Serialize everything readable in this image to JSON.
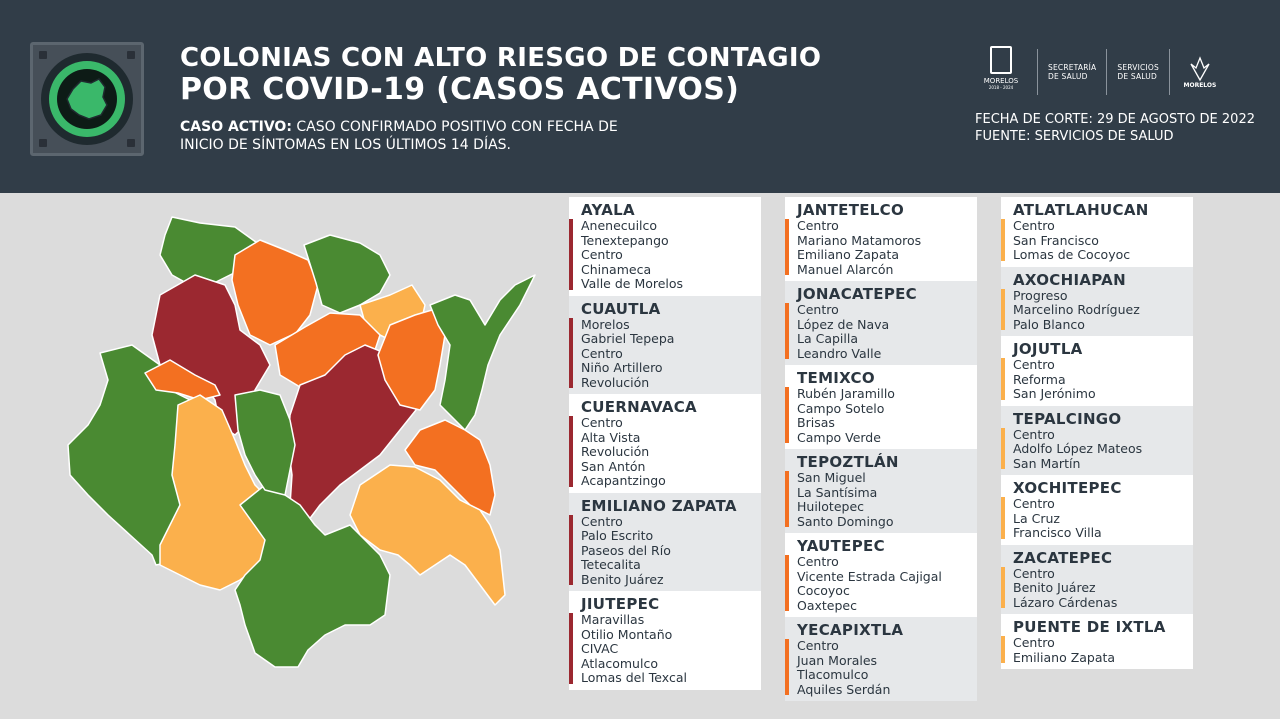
{
  "header": {
    "title_line1": "COLONIAS CON ALTO RIESGO DE CONTAGIO",
    "title_line2": "POR COVID-19 (CASOS ACTIVOS)",
    "definition_label": "CASO ACTIVO:",
    "definition_text_line1": "CASO CONFIRMADO POSITIVO CON FECHA DE",
    "definition_text_line2": "INICIO DE SÍNTOMAS EN LOS ÚLTIMOS 14 DÍAS.",
    "fecha_corte": "FECHA DE CORTE: 29 DE AGOSTO DE 2022",
    "fuente": "FUENTE: SERVICIOS DE SALUD",
    "logos": {
      "morelos": "MORELOS",
      "morelos_years": "2018 - 2024",
      "secretaria_line1": "SECRETARÍA",
      "secretaria_line2": "DE SALUD",
      "servicios_line1": "SERVICIOS",
      "servicios_line2": "DE SALUD",
      "morelos2": "MORELOS"
    }
  },
  "colors": {
    "header_bg": "#313d48",
    "red": "#9b2830",
    "orange": "#f37021",
    "light_orange": "#fbb04c",
    "green": "#4a8a32",
    "map_border": "#ffffff"
  },
  "columns": [
    [
      {
        "name": "AYALA",
        "color": "#9b2830",
        "items": [
          "Anenecuilco",
          "Tenextepango",
          "Centro",
          "Chinameca",
          "Valle de Morelos"
        ]
      },
      {
        "name": "CUAUTLA",
        "color": "#9b2830",
        "items": [
          "Morelos",
          "Gabriel Tepepa",
          "Centro",
          "Niño Artillero",
          "Revolución"
        ]
      },
      {
        "name": "CUERNAVACA",
        "color": "#9b2830",
        "items": [
          "Centro",
          "Alta Vista",
          "Revolución",
          "San Antón",
          "Acapantzingo"
        ]
      },
      {
        "name": "EMILIANO ZAPATA",
        "color": "#9b2830",
        "items": [
          "Centro",
          "Palo Escrito",
          "Paseos del Río",
          "Tetecalita",
          "Benito Juárez"
        ]
      },
      {
        "name": "JIUTEPEC",
        "color": "#9b2830",
        "items": [
          "Maravillas",
          "Otilio Montaño",
          "CIVAC",
          "Atlacomulco",
          "Lomas del Texcal"
        ]
      }
    ],
    [
      {
        "name": "JANTETELCO",
        "color": "#f37021",
        "items": [
          "Centro",
          "Mariano Matamoros",
          "Emiliano Zapata",
          "Manuel Alarcón"
        ]
      },
      {
        "name": "JONACATEPEC",
        "color": "#f37021",
        "items": [
          "Centro",
          "López de Nava",
          "La Capilla",
          "Leandro Valle"
        ]
      },
      {
        "name": "TEMIXCO",
        "color": "#f37021",
        "items": [
          "Rubén Jaramillo",
          "Campo Sotelo",
          "Brisas",
          "Campo Verde"
        ]
      },
      {
        "name": "TEPOZTLÁN",
        "color": "#f37021",
        "items": [
          "San Miguel",
          "La Santísima",
          "Huilotepec",
          "Santo Domingo"
        ]
      },
      {
        "name": "YAUTEPEC",
        "color": "#f37021",
        "items": [
          "Centro",
          "Vicente Estrada Cajigal",
          "Cocoyoc",
          "Oaxtepec"
        ]
      },
      {
        "name": "YECAPIXTLA",
        "color": "#f37021",
        "items": [
          "Centro",
          "Juan Morales",
          "Tlacomulco",
          "Aquiles Serdán"
        ]
      }
    ],
    [
      {
        "name": "ATLATLAHUCAN",
        "color": "#fbb04c",
        "items": [
          "Centro",
          "San Francisco",
          "Lomas de Cocoyoc"
        ]
      },
      {
        "name": "AXOCHIAPAN",
        "color": "#fbb04c",
        "items": [
          "Progreso",
          "Marcelino Rodríguez",
          "Palo Blanco"
        ]
      },
      {
        "name": "JOJUTLA",
        "color": "#fbb04c",
        "items": [
          "Centro",
          "Reforma",
          "San Jerónimo"
        ]
      },
      {
        "name": "TEPALCINGO",
        "color": "#fbb04c",
        "items": [
          "Centro",
          "Adolfo López Mateos",
          "San Martín"
        ]
      },
      {
        "name": "XOCHITEPEC",
        "color": "#fbb04c",
        "items": [
          "Centro",
          "La Cruz",
          "Francisco Villa"
        ]
      },
      {
        "name": "ZACATEPEC",
        "color": "#fbb04c",
        "items": [
          "Centro",
          "Benito Juárez",
          "Lázaro Cárdenas"
        ]
      },
      {
        "name": "PUENTE DE IXTLA",
        "color": "#fbb04c",
        "items": [
          "Centro",
          "Emiliano Zapata"
        ]
      }
    ]
  ]
}
